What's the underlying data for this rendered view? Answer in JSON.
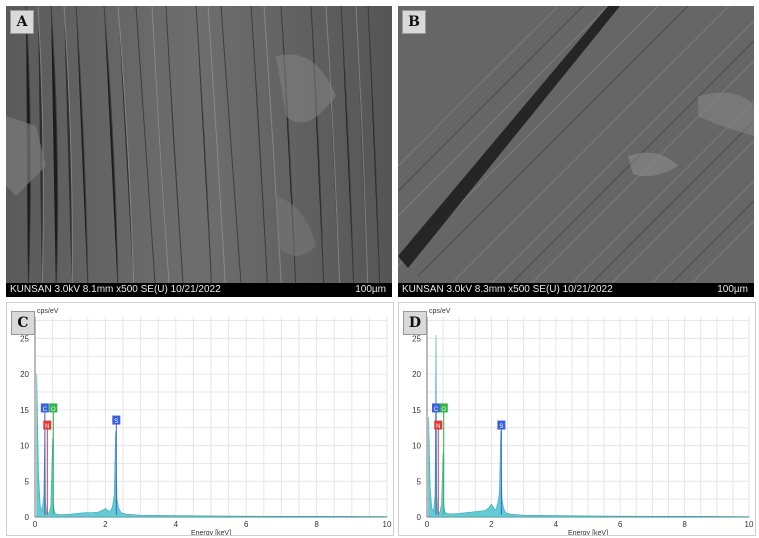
{
  "panels": {
    "A": {
      "letter": "A",
      "footer": "KUNSAN 3.0kV 8.1mm x500 SE(U) 10/21/2022",
      "scale": "100µm"
    },
    "B": {
      "letter": "B",
      "footer": "KUNSAN 3.0kV 8.3mm x500 SE(U) 10/21/2022",
      "scale": "100µm"
    },
    "C": {
      "letter": "C",
      "ylabel": "cps/eV",
      "xlabel": "Energy [keV]"
    },
    "D": {
      "letter": "D",
      "ylabel": "cps/eV",
      "xlabel": "Energy [keV]"
    }
  },
  "chart_data": [
    {
      "type": "line",
      "panel": "C",
      "ylabel": "cps/eV",
      "xlabel": "Energy [keV]",
      "xlim": [
        0,
        10
      ],
      "ylim": [
        0,
        28
      ],
      "xticks": [
        0,
        2,
        4,
        6,
        8,
        10
      ],
      "yticks": [
        0,
        5,
        10,
        15,
        20,
        25
      ],
      "grid": true,
      "series": [
        {
          "x": [
            0.05,
            0.1,
            0.15,
            0.2,
            0.25,
            0.28,
            0.3,
            0.33,
            0.36,
            0.4,
            0.45,
            0.5,
            0.52,
            0.55,
            0.58,
            0.62,
            0.7,
            0.8,
            1.0,
            1.2,
            1.4,
            1.6,
            1.8,
            1.9,
            2.0,
            2.05,
            2.1,
            2.15,
            2.2,
            2.25,
            2.29,
            2.33,
            2.38,
            2.45,
            2.6,
            3.0,
            4.0,
            5.0,
            6.0,
            7.0,
            8.0,
            9.0,
            10.0
          ],
          "y": [
            20,
            6,
            1.5,
            0.8,
            3,
            12,
            2,
            0.6,
            0.5,
            0.6,
            1.5,
            11,
            2,
            0.8,
            0.5,
            0.4,
            0.35,
            0.35,
            0.4,
            0.5,
            0.6,
            0.6,
            0.7,
            0.9,
            1.2,
            1.0,
            0.8,
            0.9,
            1.5,
            3,
            12,
            2.5,
            1.2,
            0.6,
            0.4,
            0.25,
            0.2,
            0.15,
            0.12,
            0.1,
            0.1,
            0.08,
            0.05
          ]
        }
      ],
      "peak_markers": [
        {
          "label": "C",
          "x": 0.28,
          "y": 15.2,
          "color": "#3a5fe0"
        },
        {
          "label": "O",
          "x": 0.52,
          "y": 15.2,
          "color": "#2db34a"
        },
        {
          "label": "N",
          "x": 0.35,
          "y": 12.8,
          "color": "#e03a3a"
        },
        {
          "label": "S",
          "x": 2.31,
          "y": 13.5,
          "color": "#3a5fe0"
        }
      ]
    },
    {
      "type": "line",
      "panel": "D",
      "ylabel": "cps/eV",
      "xlabel": "Energy [keV]",
      "xlim": [
        0,
        10
      ],
      "ylim": [
        0,
        28
      ],
      "xticks": [
        0,
        2,
        4,
        6,
        8,
        10
      ],
      "yticks": [
        0,
        5,
        10,
        15,
        20,
        25
      ],
      "grid": true,
      "series": [
        {
          "x": [
            0.05,
            0.1,
            0.15,
            0.2,
            0.25,
            0.28,
            0.3,
            0.33,
            0.36,
            0.4,
            0.45,
            0.5,
            0.52,
            0.55,
            0.58,
            0.62,
            0.7,
            0.8,
            1.0,
            1.2,
            1.4,
            1.6,
            1.8,
            1.9,
            2.0,
            2.05,
            2.1,
            2.15,
            2.2,
            2.25,
            2.29,
            2.33,
            2.38,
            2.45,
            2.6,
            3.0,
            4.0,
            5.0,
            6.0,
            7.0,
            8.0,
            9.0,
            10.0
          ],
          "y": [
            14,
            4,
            1.2,
            0.8,
            3,
            25.5,
            3,
            0.8,
            0.6,
            0.7,
            1.8,
            9,
            1.8,
            0.8,
            0.6,
            0.5,
            0.45,
            0.45,
            0.5,
            0.6,
            0.7,
            0.8,
            0.9,
            1.2,
            1.8,
            1.5,
            1.0,
            1.2,
            2.0,
            3.5,
            12,
            2.5,
            1.2,
            0.6,
            0.4,
            0.25,
            0.2,
            0.15,
            0.12,
            0.1,
            0.1,
            0.08,
            0.05
          ]
        }
      ],
      "peak_markers": [
        {
          "label": "C",
          "x": 0.28,
          "y": 15.2,
          "color": "#3a5fe0"
        },
        {
          "label": "O",
          "x": 0.52,
          "y": 15.2,
          "color": "#2db34a"
        },
        {
          "label": "N",
          "x": 0.35,
          "y": 12.8,
          "color": "#e03a3a"
        },
        {
          "label": "S",
          "x": 2.31,
          "y": 12.8,
          "color": "#3a5fe0"
        }
      ]
    }
  ]
}
